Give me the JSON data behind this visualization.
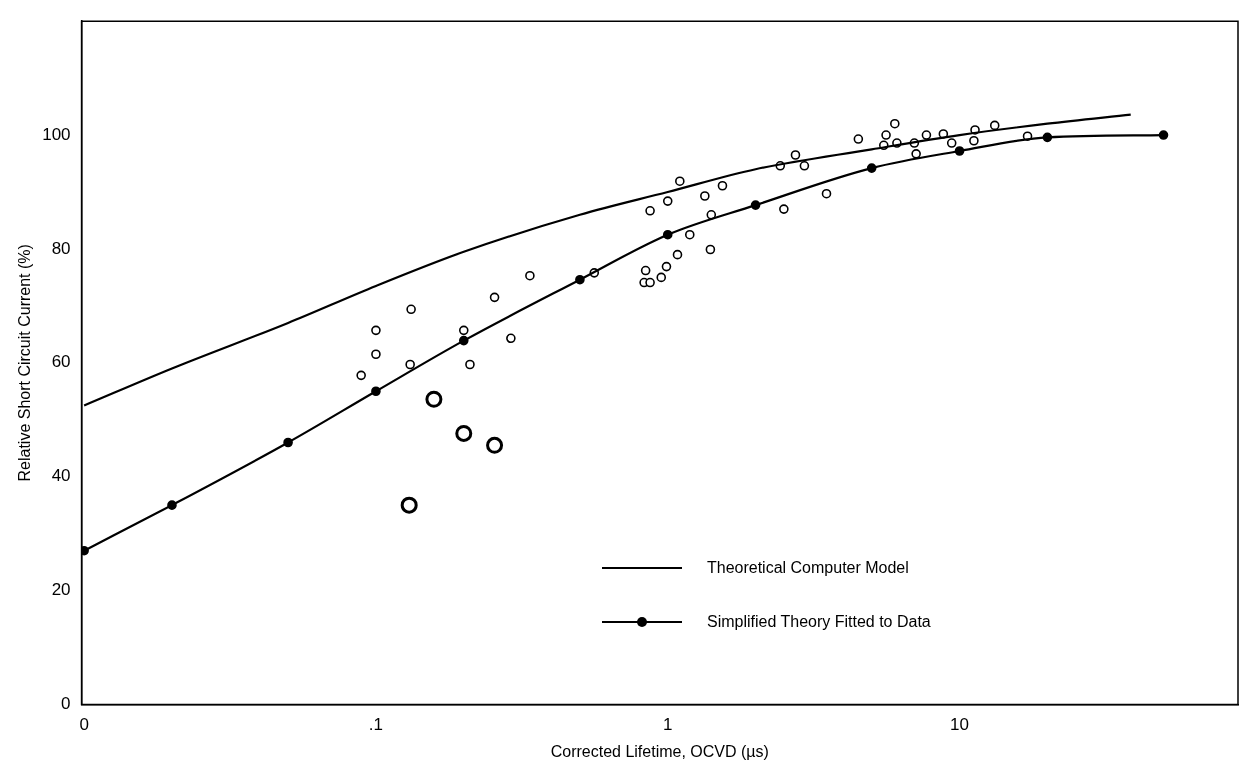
{
  "chart_data": {
    "type": "scatter",
    "xlabel": "Corrected Lifetime, OCVD (µs)",
    "ylabel": "Relative Short Circuit Current (%)",
    "log": "x",
    "xlim": [
      0.0098,
      90
    ],
    "xticks": [
      {
        "value": 0.01,
        "label": "0"
      },
      {
        "value": 0.1,
        "label": ".1"
      },
      1,
      10
    ],
    "ylim": [
      0,
      120
    ],
    "yticks": [
      0,
      20,
      40,
      60,
      80,
      100
    ],
    "grid": false,
    "legend": "bottom right",
    "series": [
      {
        "name": "Theoretical Computer Model",
        "type": "line",
        "color": "#000000",
        "marker": "none",
        "x": [
          0.01,
          0.02,
          0.05,
          0.1,
          0.2,
          0.5,
          1,
          2,
          5,
          10,
          20,
          38.6
        ],
        "values": [
          52.5,
          59,
          67,
          73.5,
          79.5,
          86,
          90,
          94,
          97.5,
          100,
          102,
          103.6
        ]
      },
      {
        "name": "Simplified Theory Fitted to Data",
        "type": "line",
        "color": "#000000",
        "marker": "circle",
        "x": [
          0.01,
          0.02,
          0.05,
          0.1,
          0.2,
          0.5,
          1,
          2,
          5,
          10,
          20,
          50
        ],
        "values": [
          27,
          35,
          46,
          55,
          63.9,
          74.6,
          82.5,
          87.7,
          94.2,
          97.2,
          99.6,
          100
        ]
      },
      {
        "color": "#000000",
        "marker": "circle",
        "x": [
          0.337,
          0.255,
          0.132,
          0.1,
          0.1,
          0.089,
          0.131,
          0.2,
          0.21,
          0.29,
          0.56,
          0.84,
          0.83,
          0.87,
          0.95,
          0.99,
          0.87,
          1.0,
          1.1,
          1.34,
          1.54,
          1.41,
          1.19,
          1.4,
          1.08,
          2.43,
          2.74,
          2.94,
          2.5,
          3.5,
          4.5,
          5.6,
          6.0,
          5.5,
          6.1,
          7.0,
          7.1,
          7.7,
          8.8,
          9.4,
          11.3,
          11.2,
          13.2,
          17.1
        ],
        "values": [
          75.3,
          71.5,
          69.4,
          65.7,
          61.5,
          57.8,
          59.7,
          65.7,
          59.7,
          64.3,
          75.8,
          76.2,
          74.1,
          74.1,
          75,
          76.9,
          86.7,
          88.4,
          91.9,
          89.3,
          91.1,
          86,
          82.5,
          79.9,
          79,
          94.6,
          96.5,
          94.6,
          87,
          89.7,
          99.3,
          100,
          102,
          98.2,
          98.6,
          98.6,
          96.7,
          100,
          100.2,
          98.6,
          100.9,
          99,
          101.7,
          99.8
        ]
      },
      {
        "color": "#000000",
        "marker": "circle",
        "x": [
          0.158,
          0.2,
          0.255,
          0.13
        ],
        "values": [
          53.6,
          47.6,
          45.5,
          35
        ]
      }
    ]
  }
}
